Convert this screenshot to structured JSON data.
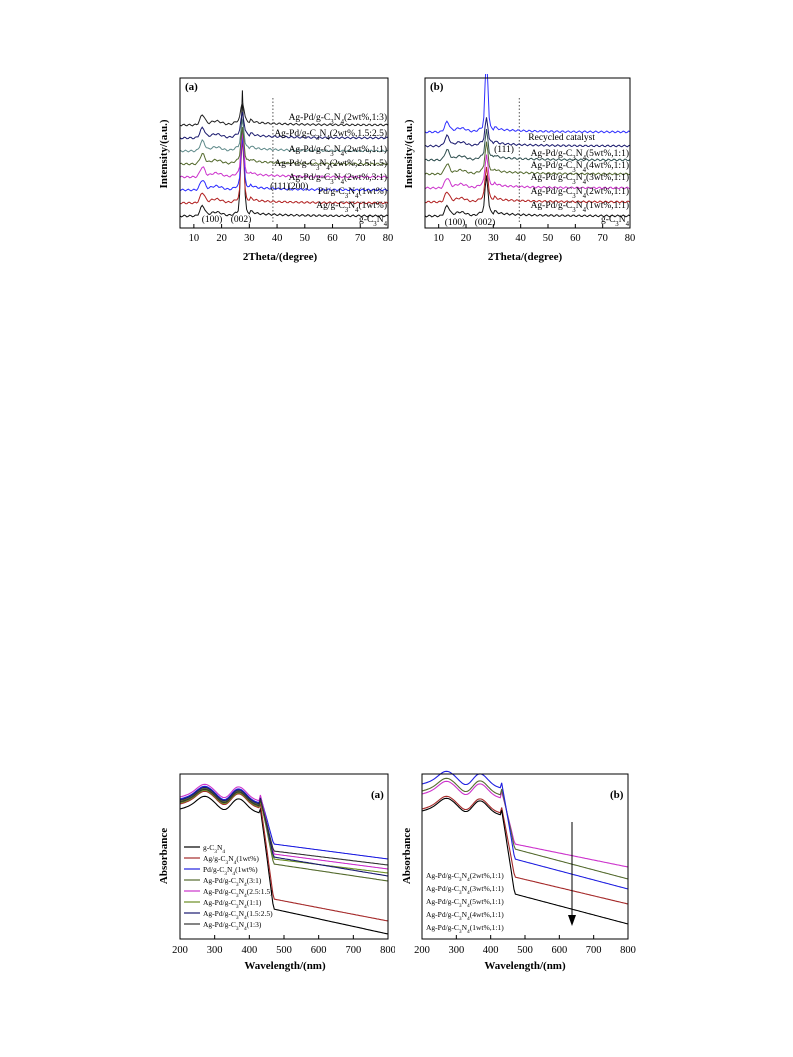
{
  "figure1": {
    "panel_a": {
      "tag": "(a)",
      "xlabel": "2Theta/(degree)",
      "ylabel": "Intensity/(a.u.)",
      "xticks": [
        "10",
        "20",
        "30",
        "40",
        "50",
        "60",
        "70",
        "80"
      ],
      "peak_labels": [
        "(100)",
        "(002)",
        "(111)",
        "(200)"
      ],
      "curve_labels": [
        "Ag-Pd/g-C3N4(2wt%,1:3)",
        "Ag-Pd/g-C3N4(2wt%,1.5:2.5)",
        "Ag-Pd/g-C3N4(2wt%,1:1)",
        "Ag-Pd/g-C3N4(2wt%,2.5:1.5)",
        "Ag-Pd/g-C3N4(2wt%,3:1)",
        "Pd/g-C3N4(1wt%)",
        "Ag/g-C3N4(1wt%)",
        "g-C3N4"
      ]
    },
    "panel_b": {
      "tag": "(b)",
      "xlabel": "2Theta/(degree)",
      "ylabel": "Intensity/(a.u.)",
      "xticks": [
        "10",
        "20",
        "30",
        "40",
        "50",
        "60",
        "70",
        "80"
      ],
      "peak_labels": [
        "(100)",
        "(002)",
        "(111)"
      ],
      "curve_labels": [
        "Recycled catalyst",
        "Ag-Pd/g-C3N4(5wt%,1:1)",
        "Ag-Pd/g-C3N4(4wt%,1:1)",
        "Ag-Pd/g-C3N4(3wt%,1:1)",
        "Ag-Pd/g-C3N4(2wt%,1:1)",
        "Ag-Pd/g-C3N4(1wt%,1:1)",
        "g-C3N4"
      ]
    }
  },
  "figure2": {
    "panel_a": {
      "tag": "(a)",
      "xlabel": "Wavelength/(nm)",
      "ylabel": "Absorbance",
      "xticks": [
        "200",
        "300",
        "400",
        "500",
        "600",
        "700",
        "800"
      ],
      "legend": [
        "g-C3N4",
        "Ag/g-C3N4(1wt%)",
        "Pd/g-C3N4(1wt%)",
        "Ag-Pd/g-C3N4(3:1)",
        "Ag-Pd/g-C3N4(2.5:1.5)",
        "Ag-Pd/g-C3N4(1:1)",
        "Ag-Pd/g-C3N4(1.5:2.5)",
        "Ag-Pd/g-C3N4(1:3)"
      ]
    },
    "panel_b": {
      "tag": "(b)",
      "xlabel": "Wavelength/(nm)",
      "ylabel": "Absorbance",
      "xticks": [
        "200",
        "300",
        "400",
        "500",
        "600",
        "700",
        "800"
      ],
      "legend": [
        "Ag-Pd/g-C3N4(2wt%,1:1)",
        "Ag-Pd/g-C3N4(3wt%,1:1)",
        "Ag-Pd/g-C3N4(5wt%,1:1)",
        "Ag-Pd/g-C3N4(4wt%,1:1)",
        "Ag-Pd/g-C3N4(1wt%,1:1)"
      ]
    }
  },
  "chart_data": [
    {
      "type": "line",
      "xlabel": "2Theta/(degree)",
      "ylabel": "Intensity/(a.u.)",
      "xlim": [
        5,
        80
      ],
      "series": [
        {
          "name": "g-C3N4",
          "color": "#111111"
        },
        {
          "name": "Ag/g-C3N4(1wt%)",
          "color": "#b22222"
        },
        {
          "name": "Pd/g-C3N4(1wt%)",
          "color": "#2a2aff"
        },
        {
          "name": "Ag-Pd/g-C3N4(2wt%,3:1)",
          "color": "#cc33cc"
        },
        {
          "name": "Ag-Pd/g-C3N4(2wt%,2.5:1.5)",
          "color": "#556b2f"
        },
        {
          "name": "Ag-Pd/g-C3N4(2wt%,1:1)",
          "color": "#5f8a8a"
        },
        {
          "name": "Ag-Pd/g-C3N4(2wt%,1.5:2.5)",
          "color": "#1a1a6e"
        },
        {
          "name": "Ag-Pd/g-C3N4(2wt%,1:3)",
          "color": "#222222"
        }
      ]
    },
    {
      "type": "line",
      "xlabel": "2Theta/(degree)",
      "ylabel": "Intensity/(a.u.)",
      "xlim": [
        5,
        80
      ],
      "series": [
        {
          "name": "g-C3N4",
          "color": "#111111"
        },
        {
          "name": "Ag-Pd/g-C3N4(1wt%,1:1)",
          "color": "#b22222"
        },
        {
          "name": "Ag-Pd/g-C3N4(2wt%,1:1)",
          "color": "#cc33cc"
        },
        {
          "name": "Ag-Pd/g-C3N4(3wt%,1:1)",
          "color": "#556b2f"
        },
        {
          "name": "Ag-Pd/g-C3N4(4wt%,1:1)",
          "color": "#2f4f4f"
        },
        {
          "name": "Ag-Pd/g-C3N4(5wt%,1:1)",
          "color": "#1a1a6e"
        },
        {
          "name": "Recycled catalyst",
          "color": "#3030ff"
        }
      ]
    },
    {
      "type": "line",
      "xlabel": "Wavelength/(nm)",
      "ylabel": "Absorbance",
      "xlim": [
        200,
        800
      ],
      "series": [
        {
          "name": "g-C3N4",
          "color": "#000000"
        },
        {
          "name": "Ag/g-C3N4(1wt%)",
          "color": "#a52a2a"
        },
        {
          "name": "Pd/g-C3N4(1wt%)",
          "color": "#2020e0"
        },
        {
          "name": "Ag-Pd/g-C3N4(3:1)",
          "color": "#556b2f"
        },
        {
          "name": "Ag-Pd/g-C3N4(2.5:1.5)",
          "color": "#cc33cc"
        },
        {
          "name": "Ag-Pd/g-C3N4(1:1)",
          "color": "#6b8e23"
        },
        {
          "name": "Ag-Pd/g-C3N4(1.5:2.5)",
          "color": "#191970"
        },
        {
          "name": "Ag-Pd/g-C3N4(1:3)",
          "color": "#333333"
        }
      ]
    },
    {
      "type": "line",
      "xlabel": "Wavelength/(nm)",
      "ylabel": "Absorbance",
      "xlim": [
        200,
        800
      ],
      "series": [
        {
          "name": "Ag-Pd/g-C3N4(2wt%,1:1)",
          "color": "#cc33cc"
        },
        {
          "name": "Ag-Pd/g-C3N4(3wt%,1:1)",
          "color": "#556b2f"
        },
        {
          "name": "Ag-Pd/g-C3N4(5wt%,1:1)",
          "color": "#2020e0"
        },
        {
          "name": "Ag-Pd/g-C3N4(4wt%,1:1)",
          "color": "#a52a2a"
        },
        {
          "name": "Ag-Pd/g-C3N4(1wt%,1:1)",
          "color": "#000000"
        }
      ]
    }
  ]
}
